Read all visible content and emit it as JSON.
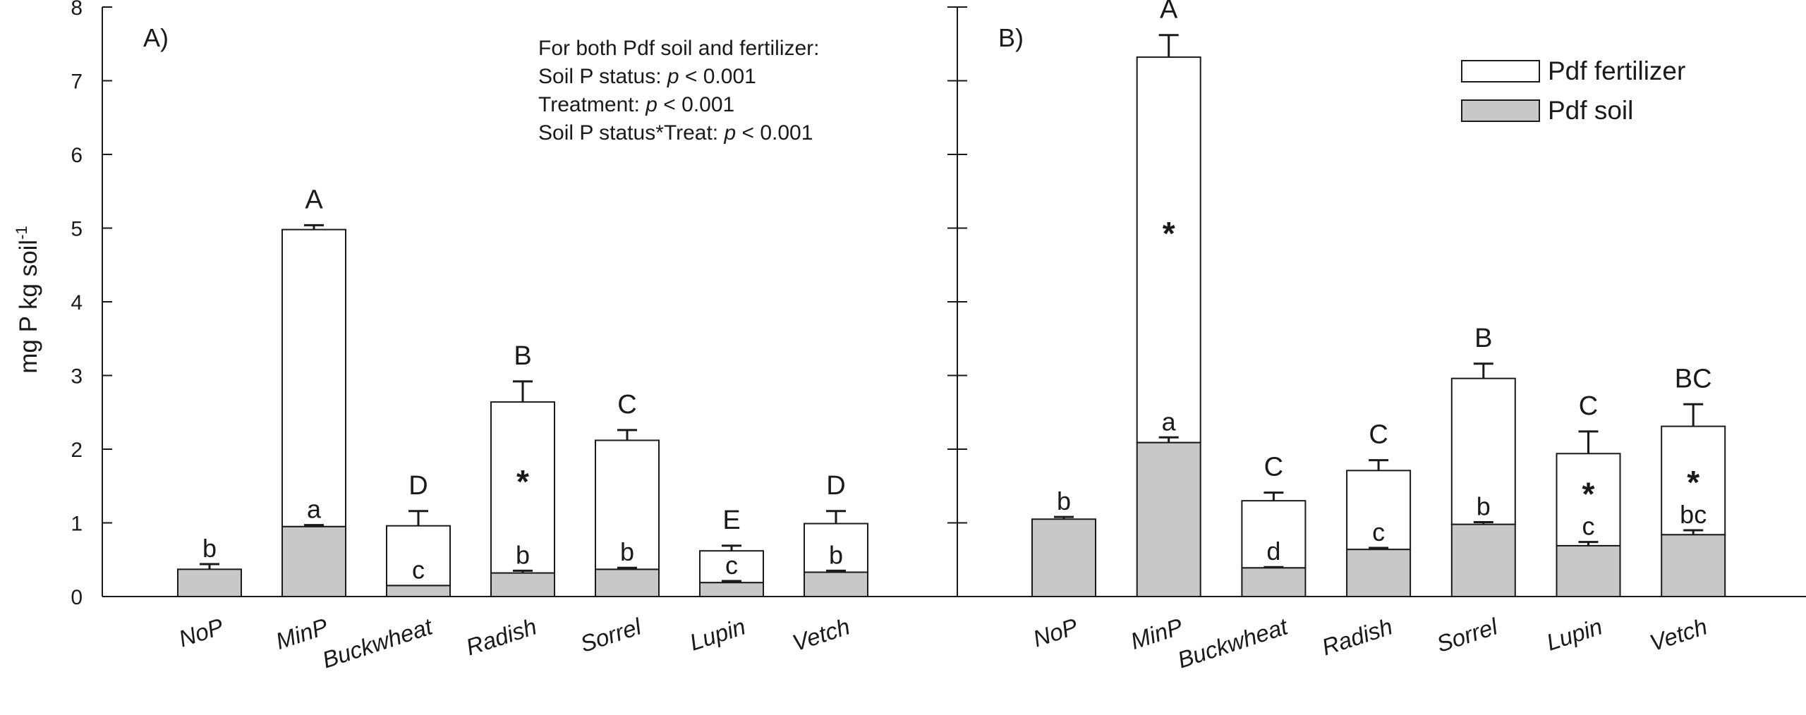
{
  "chart_data": {
    "type": "bar",
    "stacked": true,
    "ylabel": "mg P kg soil",
    "ylabel_superscript": "-1",
    "ylim": [
      0,
      8
    ],
    "yticks": [
      "0",
      "1",
      "2",
      "3",
      "4",
      "5",
      "6",
      "7",
      "8"
    ],
    "categories": [
      "NoP",
      "MinP",
      "Buckwheat",
      "Radish",
      "Sorrel",
      "Lupin",
      "Vetch"
    ],
    "colors": {
      "Pdf fertilizer": "#ffffff",
      "Pdf soil": "#c8c8c8",
      "outline": "#1a1a1a"
    },
    "legend": {
      "position": "top-right of panel B",
      "entries": [
        {
          "name": "Pdf fertilizer",
          "color": "#ffffff"
        },
        {
          "name": "Pdf soil",
          "color": "#c8c8c8"
        }
      ]
    },
    "panels": [
      {
        "label": "A)",
        "annotation_lines": [
          {
            "text": "For both Pdf soil and fertilizer:",
            "italic_p": false,
            "prefix": "",
            "suffix": ""
          },
          {
            "text": "",
            "italic_p": true,
            "prefix": "Soil P status: ",
            "suffix": " < 0.001"
          },
          {
            "text": "",
            "italic_p": true,
            "prefix": "Treatment: ",
            "suffix": " < 0.001"
          },
          {
            "text": "",
            "italic_p": true,
            "prefix": "Soil P status*Treat: ",
            "suffix": " < 0.001"
          }
        ],
        "p_symbol": "p",
        "series": [
          {
            "name": "Pdf soil",
            "values": [
              0.37,
              0.95,
              0.15,
              0.32,
              0.37,
              0.19,
              0.33
            ],
            "errors": [
              0.07,
              0.02,
              0.0,
              0.03,
              0.02,
              0.02,
              0.02
            ]
          },
          {
            "name": "Pdf fertilizer",
            "values": [
              0,
              4.03,
              0.81,
              2.32,
              1.75,
              0.43,
              0.66
            ],
            "errors": [
              0,
              0.06,
              0.2,
              0.28,
              0.14,
              0.07,
              0.17
            ]
          }
        ],
        "total_letters": [
          "",
          "A",
          "D",
          "B",
          "C",
          "E",
          "D"
        ],
        "soil_letters": [
          "b",
          "a",
          "c",
          "b",
          "b",
          "c",
          "b"
        ],
        "stars": [
          false,
          false,
          false,
          true,
          false,
          false,
          false
        ]
      },
      {
        "label": "B)",
        "annotation_lines": [],
        "p_symbol": "",
        "series": [
          {
            "name": "Pdf soil",
            "values": [
              1.05,
              2.09,
              0.39,
              0.64,
              0.98,
              0.69,
              0.84
            ],
            "errors": [
              0.03,
              0.07,
              0.01,
              0.02,
              0.03,
              0.05,
              0.06
            ]
          },
          {
            "name": "Pdf fertilizer",
            "values": [
              0,
              5.23,
              0.91,
              1.07,
              1.98,
              1.25,
              1.47
            ],
            "errors": [
              0,
              0.3,
              0.11,
              0.14,
              0.2,
              0.3,
              0.3
            ]
          }
        ],
        "total_letters": [
          "",
          "A",
          "C",
          "C",
          "B",
          "C",
          "BC"
        ],
        "soil_letters": [
          "b",
          "a",
          "d",
          "c",
          "b",
          "c",
          "bc"
        ],
        "stars": [
          false,
          true,
          false,
          false,
          false,
          true,
          true
        ],
        "star_symbol": "*"
      }
    ]
  }
}
